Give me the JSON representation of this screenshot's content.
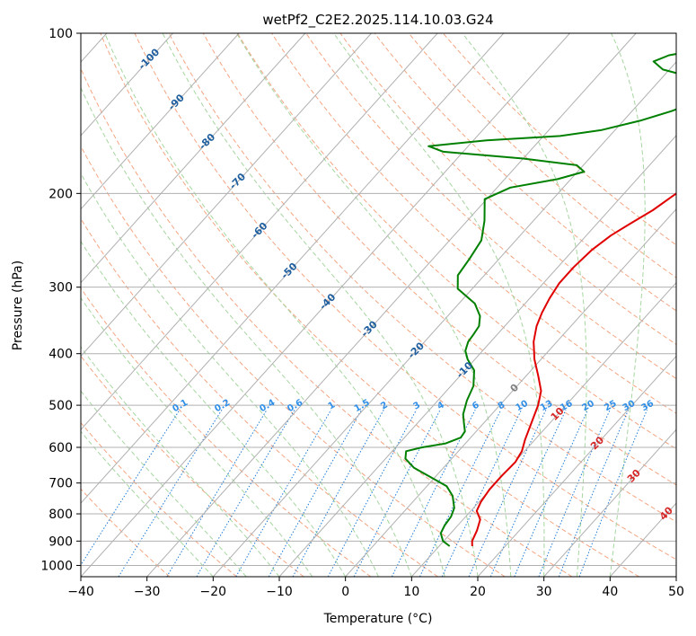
{
  "chart_data": {
    "type": "line",
    "subtype": "skew-t log-p diagram",
    "title": "wetPf2_C2E2.2025.114.10.03.G24",
    "xlabel": "Temperature (°C)",
    "ylabel": "Pressure (hPa)",
    "xlim": [
      -40,
      50
    ],
    "ylim": [
      1050,
      100
    ],
    "x_ticks": [
      -40,
      -30,
      -20,
      -10,
      0,
      10,
      20,
      30,
      40,
      50
    ],
    "x_tick_labels": [
      "−40",
      "−30",
      "−20",
      "−10",
      "0",
      "10",
      "20",
      "30",
      "40",
      "50"
    ],
    "y_ticks": [
      100,
      200,
      300,
      400,
      500,
      600,
      700,
      800,
      900,
      1000
    ],
    "y_tick_labels": [
      "100",
      "200",
      "300",
      "400",
      "500",
      "600",
      "700",
      "800",
      "900",
      "1000"
    ],
    "grid": true,
    "series": [
      {
        "name": "temperature",
        "color": "#e00000",
        "points": [
          [
            15.0,
            920
          ],
          [
            14.3,
            900
          ],
          [
            13.6,
            860
          ],
          [
            12.6,
            820
          ],
          [
            10.9,
            790
          ],
          [
            10.3,
            760
          ],
          [
            9.9,
            720
          ],
          [
            9.9,
            680
          ],
          [
            10.1,
            640
          ],
          [
            9.6,
            610
          ],
          [
            8.5,
            580
          ],
          [
            7.2,
            540
          ],
          [
            5.8,
            500
          ],
          [
            4.3,
            470
          ],
          [
            1.8,
            440
          ],
          [
            -1.0,
            410
          ],
          [
            -3.5,
            380
          ],
          [
            -5.2,
            355
          ],
          [
            -6.2,
            335
          ],
          [
            -7.0,
            315
          ],
          [
            -7.6,
            295
          ],
          [
            -7.6,
            275
          ],
          [
            -7.2,
            255
          ],
          [
            -6.3,
            240
          ],
          [
            -5.0,
            228
          ],
          [
            -3.4,
            215
          ],
          [
            -2.3,
            202
          ],
          [
            -1.1,
            190
          ],
          [
            1.4,
            178
          ],
          [
            3.4,
            165
          ],
          [
            4.8,
            152
          ],
          [
            5.5,
            140
          ],
          [
            6.4,
            128
          ],
          [
            6.8,
            118
          ],
          [
            6.3,
            108
          ],
          [
            5.9,
            100
          ]
        ]
      },
      {
        "name": "dewpoint",
        "color": "#008000",
        "points": [
          [
            11.6,
            920
          ],
          [
            9.9,
            900
          ],
          [
            8.5,
            870
          ],
          [
            8.0,
            840
          ],
          [
            7.8,
            810
          ],
          [
            7.1,
            780
          ],
          [
            5.2,
            740
          ],
          [
            3.0,
            710
          ],
          [
            -1.0,
            680
          ],
          [
            -4.5,
            655
          ],
          [
            -7.0,
            630
          ],
          [
            -7.9,
            610
          ],
          [
            -6.0,
            600
          ],
          [
            -3.0,
            590
          ],
          [
            -1.5,
            575
          ],
          [
            -1.7,
            560
          ],
          [
            -3.0,
            540
          ],
          [
            -4.3,
            520
          ],
          [
            -5.6,
            490
          ],
          [
            -6.6,
            460
          ],
          [
            -8.6,
            430
          ],
          [
            -11.1,
            410
          ],
          [
            -12.6,
            395
          ],
          [
            -13.4,
            380
          ],
          [
            -13.6,
            368
          ],
          [
            -13.9,
            355
          ],
          [
            -15.1,
            340
          ],
          [
            -17.6,
            322
          ],
          [
            -22.2,
            302
          ],
          [
            -24.0,
            285
          ],
          [
            -24.5,
            265
          ],
          [
            -25.2,
            245
          ],
          [
            -27.4,
            225
          ],
          [
            -30.3,
            205
          ],
          [
            -28.0,
            195
          ],
          [
            -22.0,
            188
          ],
          [
            -19.0,
            182
          ],
          [
            -21.0,
            177
          ],
          [
            -30.0,
            172
          ],
          [
            -43.0,
            167
          ],
          [
            -46.0,
            163
          ],
          [
            -38.0,
            159
          ],
          [
            -27.5,
            156
          ],
          [
            -22.0,
            152
          ],
          [
            -17.5,
            146
          ],
          [
            -14.0,
            140
          ],
          [
            -11.0,
            133
          ],
          [
            -11.5,
            127
          ],
          [
            -15.5,
            121
          ],
          [
            -21.0,
            117
          ],
          [
            -23.5,
            113
          ],
          [
            -22.0,
            110
          ],
          [
            -16.0,
            106
          ],
          [
            -10.0,
            102
          ],
          [
            -8.5,
            100
          ]
        ]
      }
    ],
    "background_lines": {
      "dry_adiabats_theta_C": [
        -30,
        -20,
        -10,
        0,
        10,
        20,
        30,
        40,
        50,
        60,
        70,
        80,
        90,
        100,
        110,
        120,
        130,
        140
      ],
      "moist_adiabats_start_C": [
        -20,
        -15,
        -10,
        -5,
        0,
        5,
        10,
        15,
        20,
        25,
        30,
        35,
        40
      ],
      "mixing_ratio_g_per_kg": [
        0.1,
        0.2,
        0.4,
        0.6,
        1,
        1.5,
        2,
        3,
        4,
        6,
        8,
        10,
        13,
        16,
        20,
        25,
        30,
        36
      ],
      "isotherm_interval_C": 10
    },
    "annotations": {
      "isotherm_labels": [
        "-100",
        "-90",
        "-80",
        "-70",
        "-60",
        "-50",
        "-40",
        "-30",
        "-20",
        "-10",
        "0",
        "10",
        "20",
        "30",
        "40"
      ],
      "mixing_ratio_labels": [
        "0.1",
        "0.2",
        "0.4",
        "0.6",
        "1",
        "1.5",
        "2",
        "3",
        "4",
        "6",
        "8",
        "10",
        "13",
        "16",
        "20",
        "25",
        "30",
        "36"
      ]
    },
    "colors": {
      "temperature": "#e00000",
      "dewpoint": "#008000",
      "dry_adiabat": "#f4a582",
      "moist_adiabat": "#a6d6a0",
      "mixing_ratio": "#1e7bd6",
      "isotherm_cold": "#1f5f9f",
      "isotherm_warm": "#d62728",
      "isotherm_zero": "#808080",
      "grid": "#b0b0b0"
    }
  }
}
